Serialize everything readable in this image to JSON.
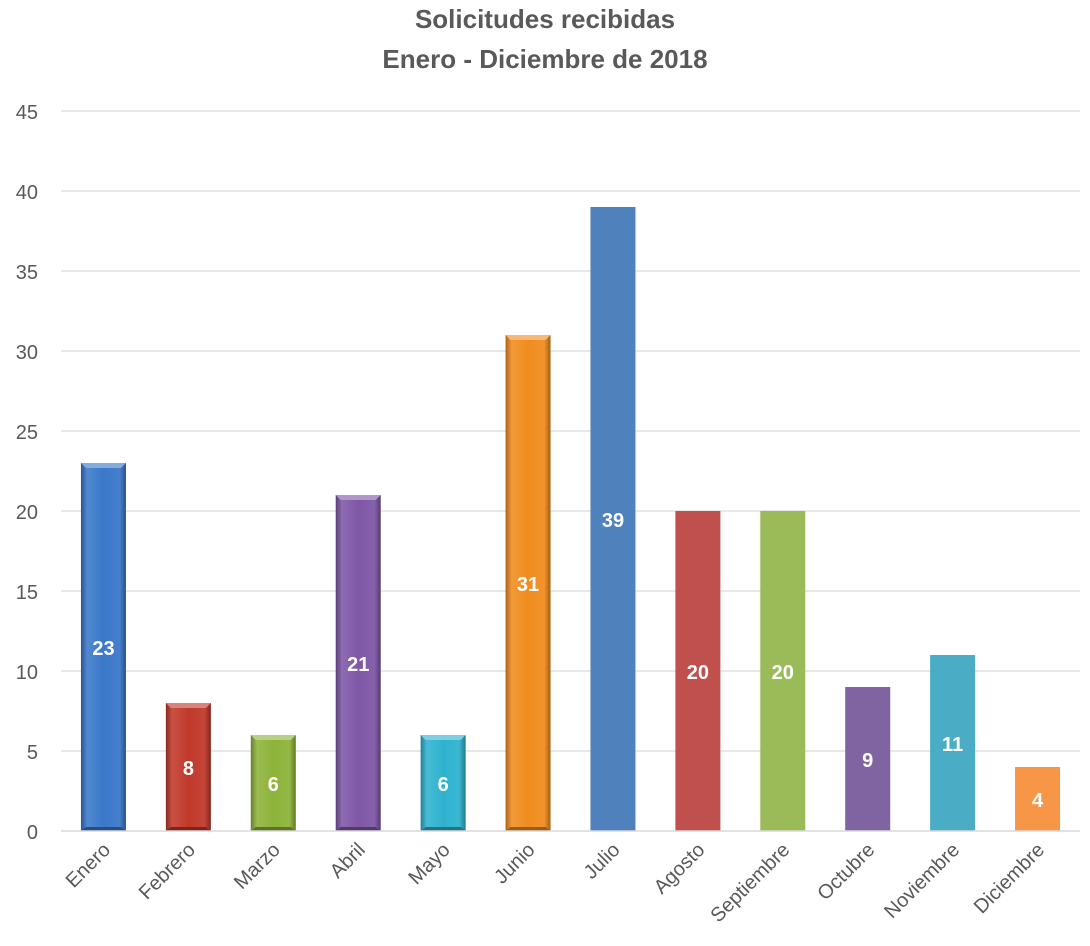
{
  "chart_data": {
    "type": "bar",
    "title": "Solicitudes recibidas",
    "subtitle": "Enero - Diciembre de 2018",
    "xlabel": "",
    "ylabel": "",
    "ylim": [
      0,
      45
    ],
    "yticks": [
      0,
      5,
      10,
      15,
      20,
      25,
      30,
      35,
      40,
      45
    ],
    "grid": true,
    "legend": "none",
    "categories": [
      "Enero",
      "Febrero",
      "Marzo",
      "Abril",
      "Mayo",
      "Junio",
      "Julio",
      "Agosto",
      "Septiembre",
      "Octubre",
      "Noviembre",
      "Diciembre"
    ],
    "values": [
      23,
      8,
      6,
      21,
      6,
      31,
      39,
      20,
      20,
      9,
      11,
      4
    ],
    "data_labels": [
      "23",
      "8",
      "6",
      "21",
      "6",
      "31",
      "39",
      "20",
      "20",
      "9",
      "11",
      "4"
    ],
    "colors": [
      "#3A78C9",
      "#C0392B",
      "#8DB33A",
      "#7E57A6",
      "#2FB2CF",
      "#F08C1E",
      "#4F81BD",
      "#C0504D",
      "#9BBB59",
      "#8064A2",
      "#4BACC6",
      "#F79646"
    ],
    "styled_bevel": [
      true,
      true,
      true,
      true,
      true,
      true,
      false,
      false,
      false,
      false,
      false,
      false
    ]
  }
}
